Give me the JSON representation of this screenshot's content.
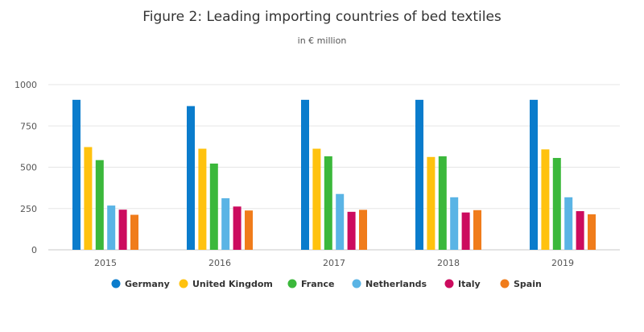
{
  "chart_data": {
    "type": "bar",
    "title": "Figure 2: Leading importing countries of bed textiles",
    "subtitle": "in € million",
    "xlabel": "",
    "ylabel": "",
    "ylim": [
      0,
      1000
    ],
    "yticks": [
      0,
      250,
      500,
      750,
      1000
    ],
    "categories": [
      "2015",
      "2016",
      "2017",
      "2018",
      "2019"
    ],
    "grid": true,
    "legend_position": "bottom",
    "series": [
      {
        "name": "Germany",
        "color": "#0a7ccc",
        "values": [
          908,
          870,
          908,
          908,
          908
        ]
      },
      {
        "name": "United Kingdom",
        "color": "#ffc20e",
        "values": [
          622,
          612,
          612,
          562,
          608
        ]
      },
      {
        "name": "France",
        "color": "#3bb83b",
        "values": [
          543,
          522,
          566,
          566,
          556
        ]
      },
      {
        "name": "Netherlands",
        "color": "#5ab4e5",
        "values": [
          268,
          312,
          338,
          318,
          318
        ]
      },
      {
        "name": "Italy",
        "color": "#cc0b5e",
        "values": [
          243,
          262,
          230,
          226,
          234
        ]
      },
      {
        "name": "Spain",
        "color": "#f07c1b",
        "values": [
          212,
          238,
          242,
          240,
          215
        ]
      }
    ]
  }
}
